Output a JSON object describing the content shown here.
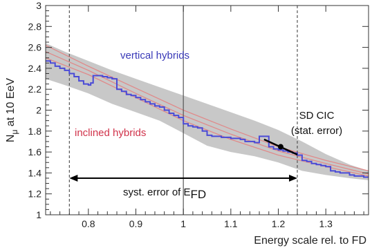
{
  "chart_data": {
    "type": "line",
    "xlabel": "Energy scale rel. to FD",
    "ylabel_main": "N",
    "ylabel_sub": "μ",
    "ylabel_rest": " at 10 EeV",
    "xlim": [
      0.71,
      1.39
    ],
    "ylim": [
      1.0,
      3.0
    ],
    "x_ticks": [
      0.8,
      0.9,
      1.0,
      1.1,
      1.2,
      1.3
    ],
    "x_tick_labels": [
      "0.8",
      "0.9",
      "1",
      "1.1",
      "1.2",
      "1.3"
    ],
    "y_ticks": [
      1.0,
      1.2,
      1.4,
      1.6,
      1.8,
      2.0,
      2.2,
      2.4,
      2.6,
      2.8,
      3.0
    ],
    "y_tick_labels": [
      "1",
      "1.2",
      "1.4",
      "1.6",
      "1.8",
      "2",
      "2.2",
      "2.4",
      "2.6",
      "2.8",
      "3"
    ],
    "vertical_lines": [
      {
        "x": 0.76,
        "style": "dashed"
      },
      {
        "x": 1.0,
        "style": "solid"
      },
      {
        "x": 1.24,
        "style": "dashed"
      }
    ],
    "band_upper": [
      [
        0.71,
        2.64
      ],
      [
        0.75,
        2.56
      ],
      [
        0.8,
        2.47
      ],
      [
        0.85,
        2.38
      ],
      [
        0.9,
        2.3
      ],
      [
        0.95,
        2.22
      ],
      [
        1.0,
        2.14
      ],
      [
        1.05,
        2.06
      ],
      [
        1.1,
        1.98
      ],
      [
        1.15,
        1.9
      ],
      [
        1.2,
        1.81
      ],
      [
        1.25,
        1.7
      ],
      [
        1.3,
        1.58
      ],
      [
        1.35,
        1.48
      ],
      [
        1.39,
        1.42
      ]
    ],
    "band_lower": [
      [
        0.71,
        2.3
      ],
      [
        0.75,
        2.24
      ],
      [
        0.8,
        2.16
      ],
      [
        0.85,
        2.06
      ],
      [
        0.9,
        1.98
      ],
      [
        0.95,
        1.9
      ],
      [
        1.0,
        1.78
      ],
      [
        1.05,
        1.66
      ],
      [
        1.1,
        1.6
      ],
      [
        1.15,
        1.56
      ],
      [
        1.2,
        1.5
      ],
      [
        1.25,
        1.42
      ],
      [
        1.3,
        1.38
      ],
      [
        1.35,
        1.35
      ],
      [
        1.39,
        1.33
      ]
    ],
    "series": [
      {
        "name": "vertical hybrids",
        "color": "#4a4ad6",
        "points": [
          [
            0.71,
            2.47
          ],
          [
            0.72,
            2.45
          ],
          [
            0.73,
            2.42
          ],
          [
            0.74,
            2.4
          ],
          [
            0.75,
            2.38
          ],
          [
            0.76,
            2.35
          ],
          [
            0.77,
            2.32
          ],
          [
            0.78,
            2.28
          ],
          [
            0.79,
            2.25
          ],
          [
            0.8,
            2.24
          ],
          [
            0.805,
            2.26
          ],
          [
            0.81,
            2.33
          ],
          [
            0.83,
            2.32
          ],
          [
            0.84,
            2.31
          ],
          [
            0.85,
            2.3
          ],
          [
            0.86,
            2.2
          ],
          [
            0.87,
            2.18
          ],
          [
            0.88,
            2.15
          ],
          [
            0.89,
            2.14
          ],
          [
            0.9,
            2.12
          ],
          [
            0.91,
            2.1
          ],
          [
            0.92,
            2.08
          ],
          [
            0.93,
            2.06
          ],
          [
            0.94,
            2.04
          ],
          [
            0.95,
            2.03
          ],
          [
            0.96,
            2.0
          ],
          [
            0.97,
            1.97
          ],
          [
            0.98,
            1.95
          ],
          [
            0.99,
            1.93
          ],
          [
            1.0,
            1.87
          ],
          [
            1.01,
            1.85
          ],
          [
            1.02,
            1.84
          ],
          [
            1.03,
            1.83
          ],
          [
            1.04,
            1.8
          ],
          [
            1.05,
            1.76
          ],
          [
            1.06,
            1.75
          ],
          [
            1.07,
            1.75
          ],
          [
            1.08,
            1.74
          ],
          [
            1.09,
            1.74
          ],
          [
            1.1,
            1.73
          ],
          [
            1.11,
            1.73
          ],
          [
            1.12,
            1.72
          ],
          [
            1.13,
            1.7
          ],
          [
            1.14,
            1.7
          ],
          [
            1.15,
            1.69
          ],
          [
            1.16,
            1.75
          ],
          [
            1.17,
            1.75
          ],
          [
            1.18,
            1.65
          ],
          [
            1.19,
            1.63
          ],
          [
            1.2,
            1.62
          ],
          [
            1.21,
            1.61
          ],
          [
            1.22,
            1.6
          ],
          [
            1.23,
            1.59
          ],
          [
            1.24,
            1.57
          ],
          [
            1.25,
            1.52
          ],
          [
            1.26,
            1.51
          ],
          [
            1.27,
            1.49
          ],
          [
            1.28,
            1.48
          ],
          [
            1.29,
            1.47
          ],
          [
            1.3,
            1.46
          ],
          [
            1.31,
            1.42
          ],
          [
            1.32,
            1.41
          ],
          [
            1.33,
            1.4
          ],
          [
            1.34,
            1.4
          ],
          [
            1.35,
            1.38
          ],
          [
            1.36,
            1.37
          ],
          [
            1.37,
            1.37
          ],
          [
            1.38,
            1.36
          ],
          [
            1.39,
            1.36
          ]
        ]
      }
    ],
    "red_curves": [
      [
        [
          0.71,
          2.62
        ],
        [
          0.8,
          2.42
        ],
        [
          0.9,
          2.21
        ],
        [
          1.0,
          2.0
        ],
        [
          1.1,
          1.82
        ],
        [
          1.2,
          1.65
        ],
        [
          1.3,
          1.52
        ],
        [
          1.39,
          1.42
        ]
      ],
      [
        [
          0.71,
          2.56
        ],
        [
          0.8,
          2.38
        ],
        [
          0.9,
          2.16
        ],
        [
          1.0,
          1.95
        ],
        [
          1.1,
          1.77
        ],
        [
          1.2,
          1.61
        ],
        [
          1.3,
          1.49
        ],
        [
          1.39,
          1.39
        ]
      ],
      [
        [
          0.71,
          2.5
        ],
        [
          0.8,
          2.34
        ],
        [
          0.9,
          2.12
        ],
        [
          1.0,
          1.9
        ],
        [
          1.1,
          1.72
        ],
        [
          1.2,
          1.57
        ],
        [
          1.3,
          1.46
        ],
        [
          1.39,
          1.37
        ]
      ]
    ],
    "sd_cic": {
      "x": 1.205,
      "y": 1.65,
      "segment": [
        [
          1.17,
          1.72
        ],
        [
          1.24,
          1.575
        ]
      ]
    },
    "syst_arrow": {
      "x1": 0.76,
      "x2": 1.24,
      "y": 1.35
    },
    "annotations": {
      "vertical_hybrids": "vertical hybrids",
      "inclined_hybrids": "inclined hybrids",
      "sd_cic_line1": "SD CIC",
      "sd_cic_line2": "(stat. error)",
      "syst_main": "syst. error of E",
      "syst_sub": "FD"
    },
    "colors": {
      "blue": "#4a4ad6",
      "red": "#d0324a",
      "band": "#c8c8c8",
      "red_curve": "#e08a8a"
    }
  }
}
